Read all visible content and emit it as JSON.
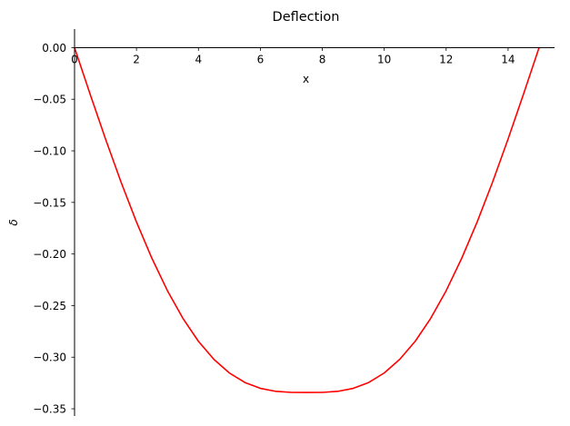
{
  "chart_data": {
    "type": "line",
    "title": "Deflection",
    "xlabel": "x",
    "ylabel": "δ",
    "xlim": [
      0,
      15.5
    ],
    "ylim": [
      -0.357,
      0.018
    ],
    "x_ticks": [
      0,
      2,
      4,
      6,
      8,
      10,
      12,
      14
    ],
    "x_tick_labels": [
      "0",
      "2",
      "4",
      "6",
      "8",
      "10",
      "12",
      "14"
    ],
    "y_ticks": [
      0.0,
      -0.05,
      -0.1,
      -0.15,
      -0.2,
      -0.25,
      -0.3,
      -0.35
    ],
    "y_tick_labels": [
      "0.00",
      "−0.05",
      "−0.10",
      "−0.15",
      "−0.20",
      "−0.25",
      "−0.30",
      "−0.35"
    ],
    "grid": false,
    "series": [
      {
        "color": "#ff0000",
        "x": [
          0,
          0.5,
          1,
          1.5,
          2,
          2.5,
          3,
          3.5,
          4,
          4.5,
          5,
          5.5,
          6,
          6.5,
          7,
          7.5,
          8,
          8.5,
          9,
          9.5,
          10,
          10.5,
          11,
          11.5,
          12,
          12.5,
          13,
          13.5,
          14,
          14.5,
          15
        ],
        "y": [
          0.0,
          -0.0448,
          -0.0885,
          -0.1302,
          -0.169,
          -0.2043,
          -0.2356,
          -0.2624,
          -0.2846,
          -0.3021,
          -0.3153,
          -0.3245,
          -0.3302,
          -0.3331,
          -0.3341,
          -0.3342,
          -0.3341,
          -0.3331,
          -0.3302,
          -0.3245,
          -0.3153,
          -0.3021,
          -0.2846,
          -0.2624,
          -0.2356,
          -0.2043,
          -0.169,
          -0.1302,
          -0.0885,
          -0.0448,
          0.0
        ]
      }
    ]
  }
}
